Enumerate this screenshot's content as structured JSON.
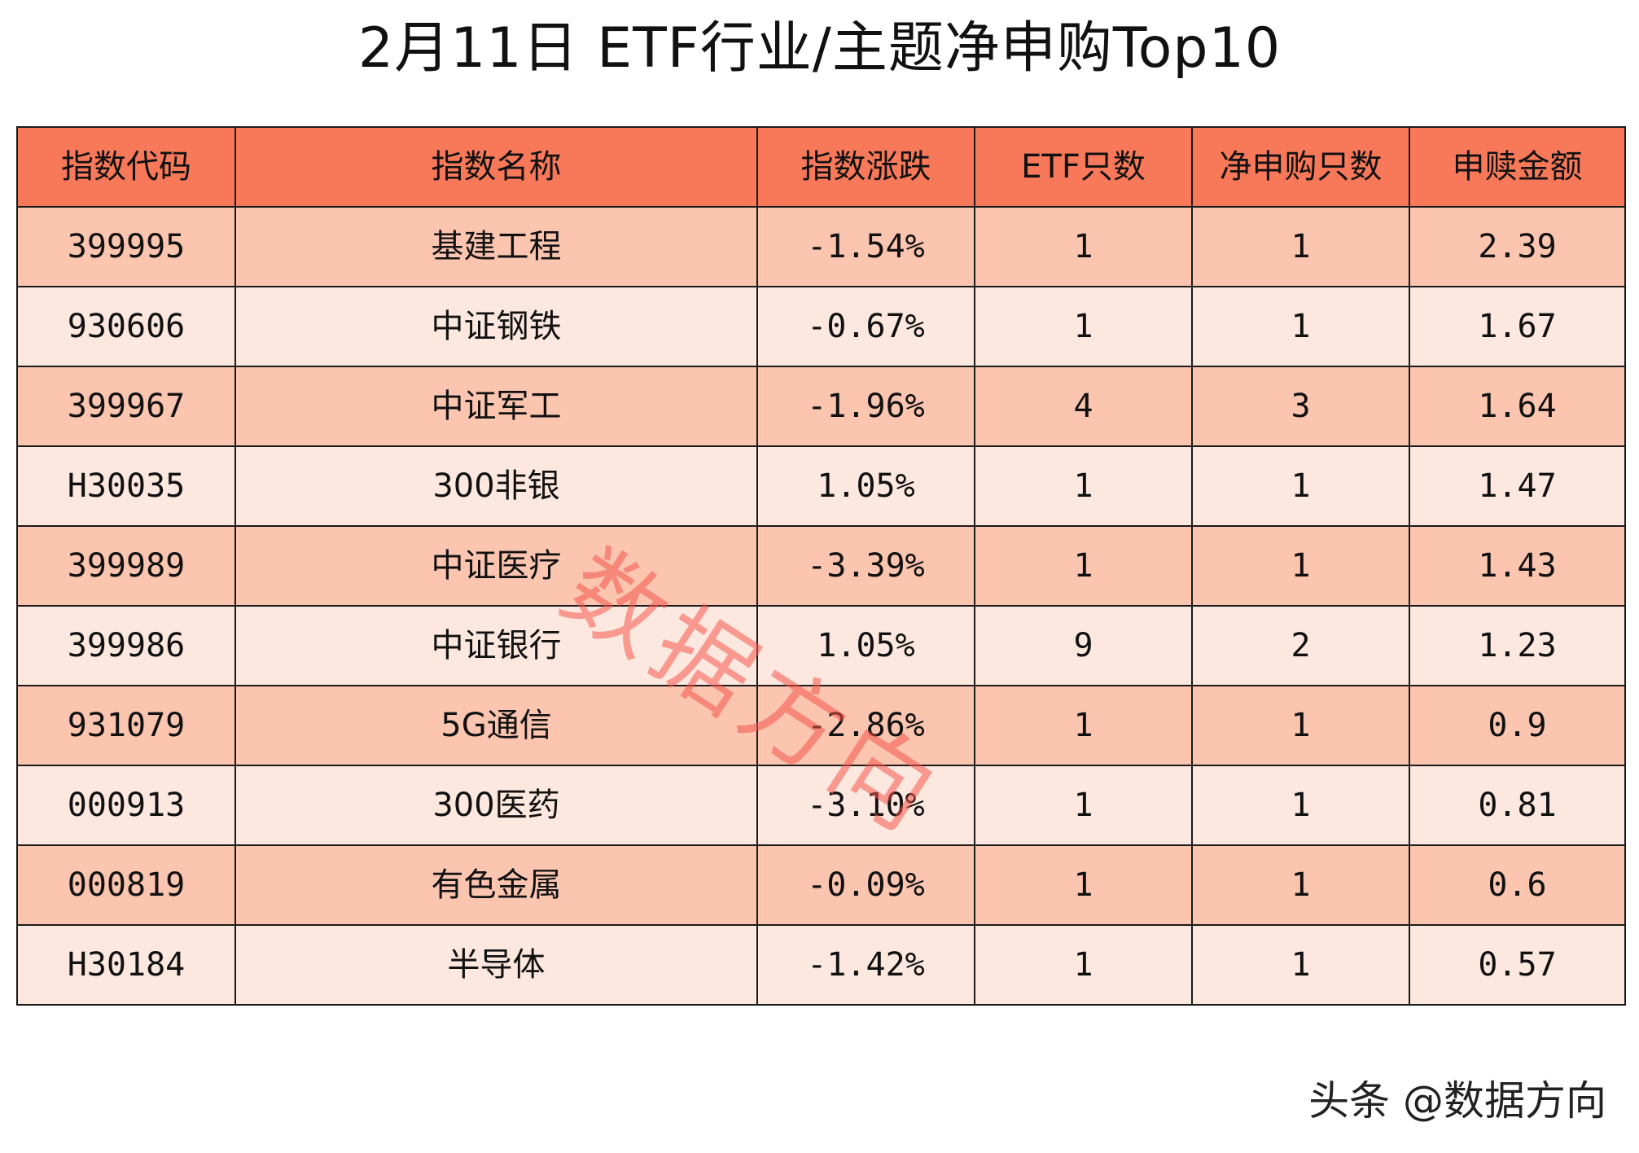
{
  "title": "2月11日 ETF行业/主题净申购Top10",
  "table": {
    "columns": [
      "指数代码",
      "指数名称",
      "指数涨跌",
      "ETF只数",
      "净申购只数",
      "申赎金额"
    ],
    "rows": [
      {
        "code": "399995",
        "name": "基建工程",
        "change": "-1.54%",
        "etf_count": "1",
        "net_count": "1",
        "amount": "2.39"
      },
      {
        "code": "930606",
        "name": "中证钢铁",
        "change": "-0.67%",
        "etf_count": "1",
        "net_count": "1",
        "amount": "1.67"
      },
      {
        "code": "399967",
        "name": "中证军工",
        "change": "-1.96%",
        "etf_count": "4",
        "net_count": "3",
        "amount": "1.64"
      },
      {
        "code": "H30035",
        "name": "300非银",
        "change": "1.05%",
        "etf_count": "1",
        "net_count": "1",
        "amount": "1.47"
      },
      {
        "code": "399989",
        "name": "中证医疗",
        "change": "-3.39%",
        "etf_count": "1",
        "net_count": "1",
        "amount": "1.43"
      },
      {
        "code": "399986",
        "name": "中证银行",
        "change": "1.05%",
        "etf_count": "9",
        "net_count": "2",
        "amount": "1.23"
      },
      {
        "code": "931079",
        "name": "5G通信",
        "change": "-2.86%",
        "etf_count": "1",
        "net_count": "1",
        "amount": "0.9"
      },
      {
        "code": "000913",
        "name": "300医药",
        "change": "-3.10%",
        "etf_count": "1",
        "net_count": "1",
        "amount": "0.81"
      },
      {
        "code": "000819",
        "name": "有色金属",
        "change": "-0.09%",
        "etf_count": "1",
        "net_count": "1",
        "amount": "0.6"
      },
      {
        "code": "H30184",
        "name": "半导体",
        "change": "-1.42%",
        "etf_count": "1",
        "net_count": "1",
        "amount": "0.57"
      }
    ]
  },
  "watermark": "数据方向",
  "source": "头条 @数据方向",
  "colors": {
    "header_bg": "#f8795a",
    "row_odd_bg": "#fbc5b0",
    "row_even_bg": "#fde8e0",
    "watermark": "#f4564c",
    "border": "#1a1a1a"
  }
}
